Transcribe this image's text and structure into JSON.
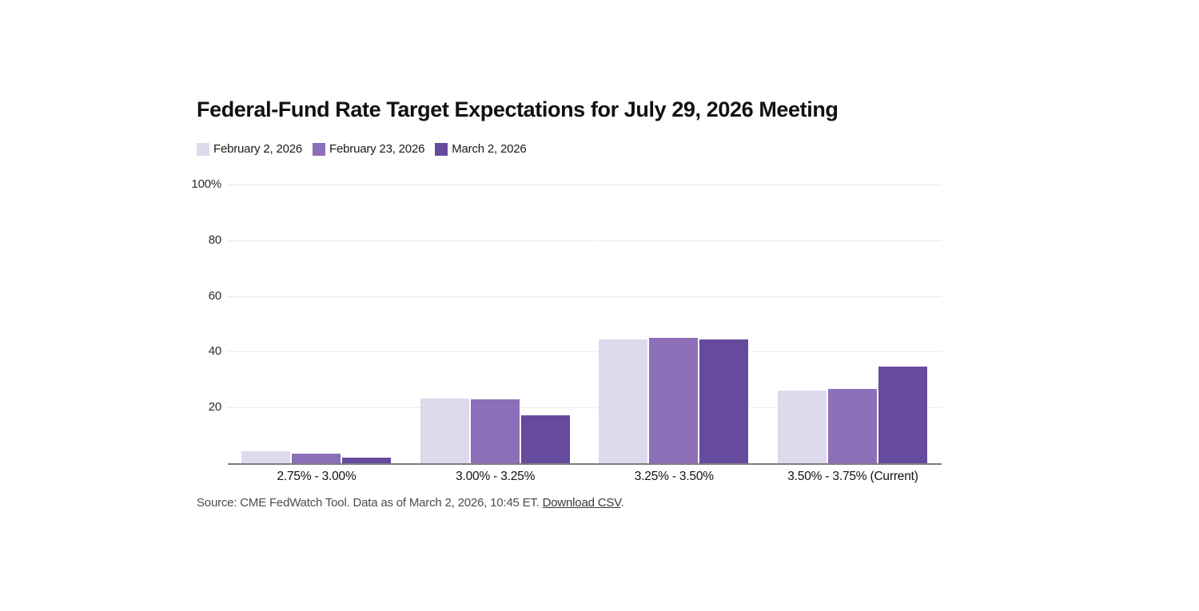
{
  "title": "Federal-Fund Rate Target Expectations for July 29, 2026 Meeting",
  "source": {
    "prefix": "Source: CME FedWatch Tool. Data as of March 2, 2026, 10:45 ET. ",
    "link_label": "Download CSV",
    "suffix": "."
  },
  "colors": {
    "series_light": "#ded9ec",
    "series_medium": "#8d6eb8",
    "series_dark": "#664a9e",
    "gridline": "#d8d8d8",
    "axis_line": "#7d7d7d",
    "text": "#111111"
  },
  "chart_data": {
    "type": "bar",
    "title": "Federal-Fund Rate Target Expectations for July 29, 2026 Meeting",
    "categories": [
      "2.75% - 3.00%",
      "3.00% - 3.25%",
      "3.25% - 3.50%",
      "3.50% - 3.75% (Current)"
    ],
    "series": [
      {
        "name": "February 2, 2026",
        "color": "#ded9ec",
        "values": [
          4.4,
          23.3,
          44.4,
          26.1
        ]
      },
      {
        "name": "February 23, 2026",
        "color": "#8d6eb8",
        "values": [
          3.3,
          23.0,
          45.0,
          26.7
        ]
      },
      {
        "name": "March 2, 2026",
        "color": "#664a9e",
        "values": [
          1.9,
          17.2,
          44.4,
          34.7
        ]
      }
    ],
    "xlabel": "",
    "ylabel": "",
    "ylim": [
      0,
      100
    ],
    "yticks": [
      {
        "value": 100,
        "label": "100%"
      },
      {
        "value": 80,
        "label": "80"
      },
      {
        "value": 60,
        "label": "60"
      },
      {
        "value": 40,
        "label": "40"
      },
      {
        "value": 20,
        "label": "20"
      }
    ],
    "grid": "horizontal-dotted",
    "legend_position": "top-left"
  }
}
